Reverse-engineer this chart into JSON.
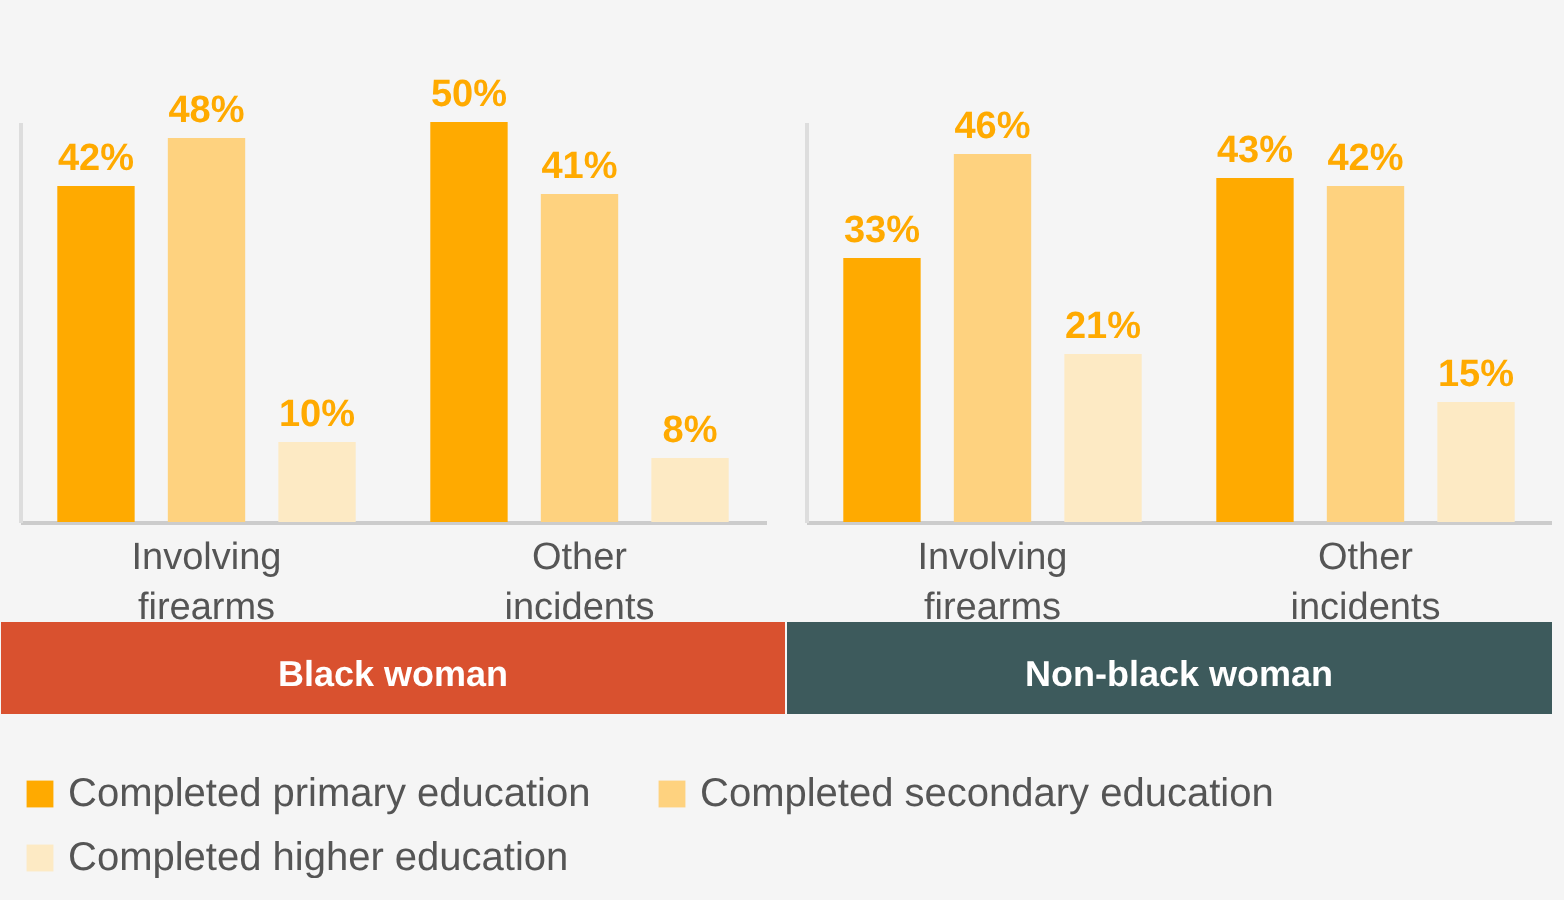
{
  "chart_data": [
    {
      "type": "bar",
      "title": "Black woman",
      "categories": [
        "Involving firearms",
        "Other incidents"
      ],
      "legend": "bottom",
      "tick_labels": "x",
      "series": [
        {
          "name": "Completed primary education",
          "color": "#ffaa00",
          "values": [
            42,
            50
          ],
          "value_labels": [
            "42%",
            "50%"
          ]
        },
        {
          "name": "Completed secondary education",
          "color": "#fed27f",
          "values": [
            48,
            41
          ],
          "value_labels": [
            "48%",
            "41%"
          ]
        },
        {
          "name": "Completed higher education",
          "color": "#fdeac4",
          "values": [
            10,
            8
          ],
          "value_labels": [
            "10%",
            "8%"
          ]
        }
      ]
    },
    {
      "type": "bar",
      "title": "Non-black woman",
      "categories": [
        "Involving firearms",
        "Other incidents"
      ],
      "legend": "bottom",
      "tick_labels": "x",
      "series": [
        {
          "name": "Completed primary education",
          "color": "#ffaa00",
          "values": [
            33,
            43
          ],
          "value_labels": [
            "33%",
            "43%"
          ]
        },
        {
          "name": "Completed secondary education",
          "color": "#fed27f",
          "values": [
            46,
            42
          ],
          "value_labels": [
            "46%",
            "42%"
          ]
        },
        {
          "name": "Completed higher education",
          "color": "#fdeac4",
          "values": [
            21,
            15
          ],
          "value_labels": [
            "21%",
            "15%"
          ]
        }
      ]
    }
  ]
}
